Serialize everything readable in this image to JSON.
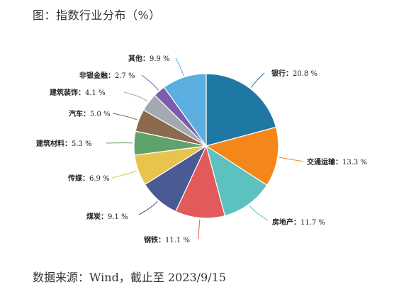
{
  "title": "图：指数行业分布（%）",
  "source": "数据来源：Wind，截止至 2023/9/15",
  "chart_data": {
    "type": "pie",
    "unit": "%",
    "slices": [
      {
        "label": "银行",
        "value": 20.8,
        "value_text": "20.8 %",
        "color": "#1f77a4"
      },
      {
        "label": "交通运输",
        "value": 13.3,
        "value_text": "13.3 %",
        "color": "#f5871a"
      },
      {
        "label": "房地产",
        "value": 11.7,
        "value_text": "11.7 %",
        "color": "#5cc1bf"
      },
      {
        "label": "钢铁",
        "value": 11.1,
        "value_text": "11.1 %",
        "color": "#e25a5a"
      },
      {
        "label": "煤炭",
        "value": 9.1,
        "value_text": "9.1 %",
        "color": "#4a5a95"
      },
      {
        "label": "传媒",
        "value": 6.9,
        "value_text": "6.9 %",
        "color": "#e8c44e"
      },
      {
        "label": "建筑材料",
        "value": 5.3,
        "value_text": "5.3 %",
        "color": "#5fa36a"
      },
      {
        "label": "汽车",
        "value": 5.0,
        "value_text": "5.0 %",
        "color": "#8b6a4d"
      },
      {
        "label": "建筑装饰",
        "value": 4.1,
        "value_text": "4.1 %",
        "color": "#a3a9b0"
      },
      {
        "label": "非银金融",
        "value": 2.7,
        "value_text": "2.7 %",
        "color": "#7d5cae"
      },
      {
        "label": "其他",
        "value": 9.9,
        "value_text": "9.9 %",
        "color": "#5aaee0"
      }
    ]
  }
}
